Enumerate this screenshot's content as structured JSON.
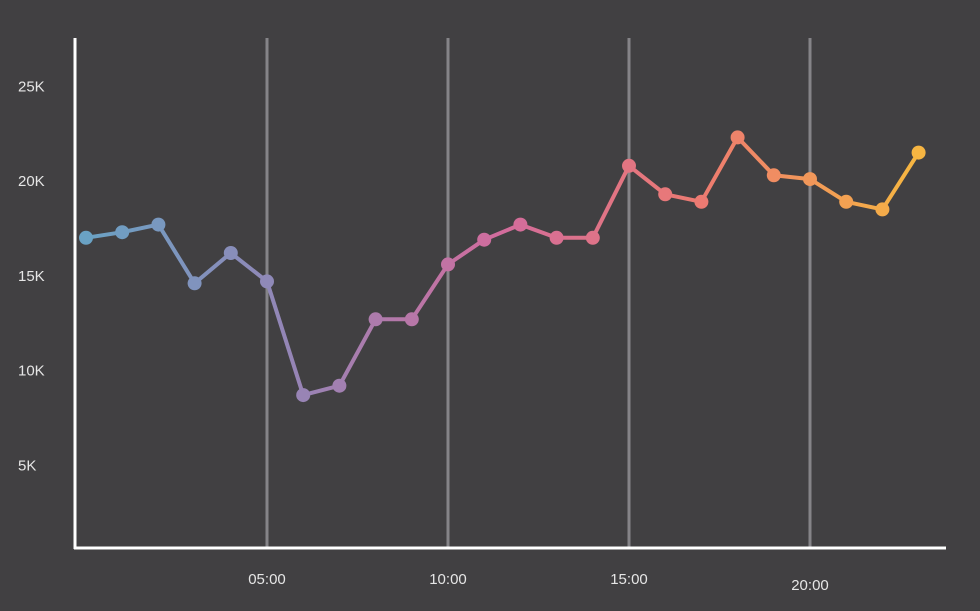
{
  "chart_data": {
    "type": "line",
    "title": "",
    "xlabel": "",
    "ylabel": "",
    "x": [
      "00:00",
      "01:00",
      "02:00",
      "03:00",
      "04:00",
      "05:00",
      "06:00",
      "07:00",
      "08:00",
      "09:00",
      "10:00",
      "11:00",
      "12:00",
      "13:00",
      "14:00",
      "15:00",
      "16:00",
      "17:00",
      "18:00",
      "19:00",
      "20:00",
      "21:00",
      "22:00",
      "23:00"
    ],
    "series": [
      {
        "values": [
          17000,
          17300,
          17700,
          14600,
          16200,
          14700,
          8700,
          9200,
          12700,
          12700,
          15600,
          16900,
          17700,
          17000,
          17000,
          20800,
          19300,
          18900,
          22300,
          20300,
          20100,
          18900,
          18500,
          21500
        ]
      }
    ],
    "ylim": [
      0,
      27000
    ],
    "y_ticks": [
      {
        "value": 5000,
        "label": "5K"
      },
      {
        "value": 10000,
        "label": "10K"
      },
      {
        "value": 15000,
        "label": "15K"
      },
      {
        "value": 20000,
        "label": "20K"
      },
      {
        "value": 25000,
        "label": "25K"
      }
    ],
    "x_ticks": [
      {
        "value": "05:00",
        "label": "05:00"
      },
      {
        "value": "10:00",
        "label": "10:00"
      },
      {
        "value": "15:00",
        "label": "15:00"
      },
      {
        "value": "20:00",
        "label": "20:00"
      }
    ],
    "x_gridlines": [
      "05:00",
      "10:00",
      "15:00",
      "20:00"
    ],
    "grid": "vertical-only",
    "legend": "none",
    "gradient_colors": [
      "#6aa2c4",
      "#9585b6",
      "#d26c9d",
      "#ed7b70",
      "#f6b542"
    ],
    "colors": {
      "background": "#414042",
      "axis": "#ffffff",
      "gridline": "#858488",
      "tick_label": "#e6e6e6"
    }
  }
}
